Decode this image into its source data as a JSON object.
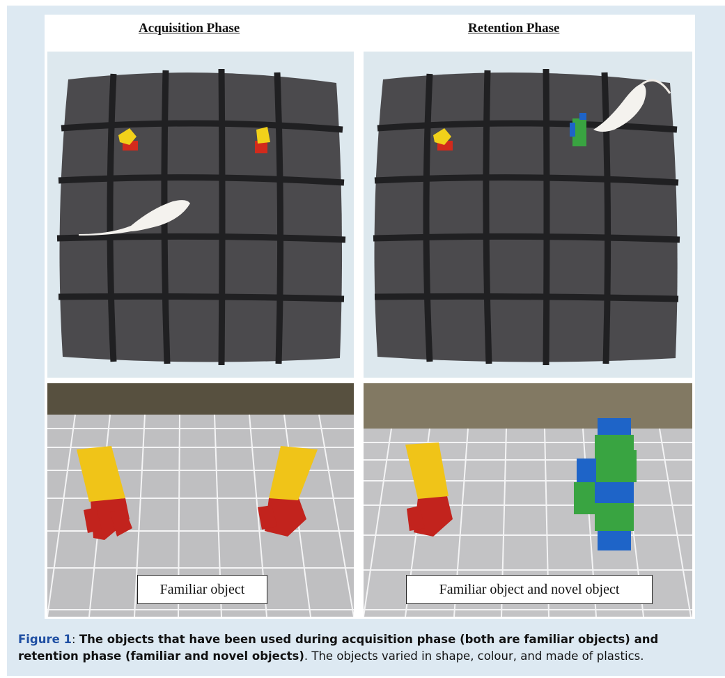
{
  "figure": {
    "titles": {
      "left": "Acquisition Phase",
      "right": "Retention Phase"
    },
    "panel_labels": {
      "left": "Familiar object",
      "right": "Familiar object and novel object"
    },
    "caption": {
      "label": "Figure 1",
      "separator": ": ",
      "bold_text": "The objects that have been used during acquisition phase (both are familiar objects) and retention phase (familiar and novel objects)",
      "rest": ". The objects varied in shape, colour, and made of plastics."
    }
  }
}
